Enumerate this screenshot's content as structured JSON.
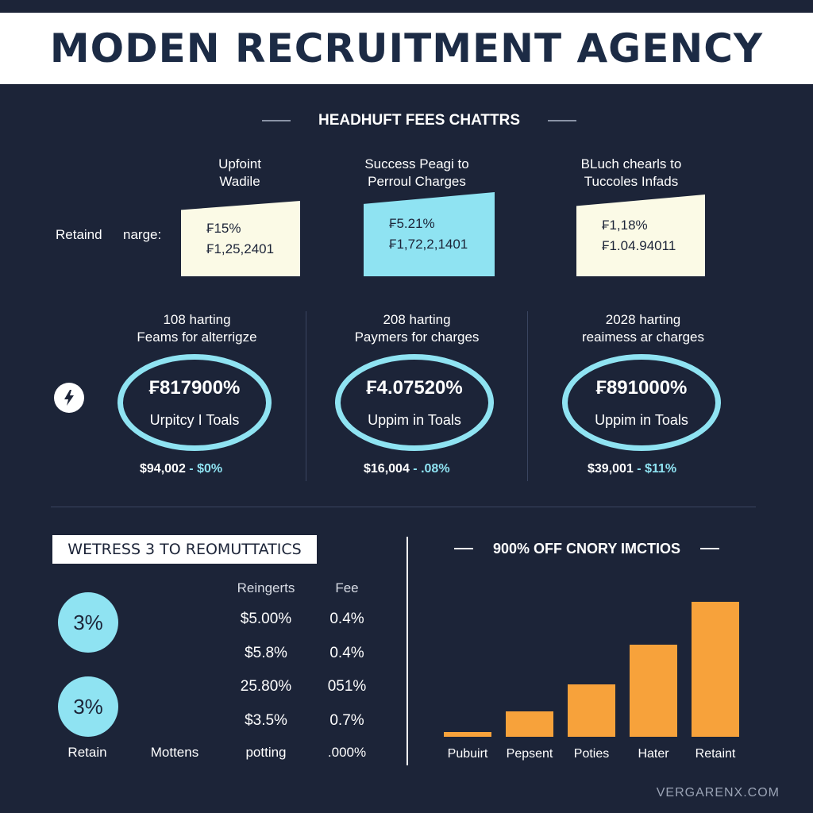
{
  "title": "MODEN RECRUITMENT AGENCY",
  "section_heading": "HEADHUFT FEES CHATTRS",
  "top_row": {
    "row_label": "Retaind",
    "row_label_2": "narge:",
    "columns": [
      {
        "caption_line1": "Upfoint",
        "caption_line2": "Wadile",
        "pct": "₣15%",
        "amount": "₣1,25,2401"
      },
      {
        "caption_line1": "Success Peagi to",
        "caption_line2": "Perroul Charges",
        "pct": "₣5.21%",
        "amount": "₣1,72,2,1401"
      },
      {
        "caption_line1": "BLuch chearls to",
        "caption_line2": "Tuccoles Infads",
        "pct": "₣1,18%",
        "amount": "₣1.04.94011"
      }
    ]
  },
  "ring_row": {
    "columns": [
      {
        "caption_line1": "108 harting",
        "caption_line2": "Feams for alterrigze",
        "value": "₣817900%",
        "label": "Urpitcy I Toals",
        "amount": "$94,002",
        "delta": "- $0%"
      },
      {
        "caption_line1": "208 harting",
        "caption_line2": "Paymers for charges",
        "value": "₣4.07520%",
        "label": "Uppim in Toals",
        "amount": "$16,004",
        "delta": "- .08%"
      },
      {
        "caption_line1": "2028 harting",
        "caption_line2": "reaimess ar charges",
        "value": "₣891000%",
        "label": "Uppim in Toals",
        "amount": "$39,001",
        "delta": "- $11%"
      }
    ]
  },
  "lower_left": {
    "box_label": "WETRESS 3 TO REOMUTTATICS",
    "circle_1": "3%",
    "circle_2": "3%",
    "table_headers": [
      "Reingerts",
      "Fee"
    ],
    "table_rows": [
      [
        "$5.00%",
        "0.4%"
      ],
      [
        "$5.8%",
        "0.4%"
      ],
      [
        "25.80%",
        "051%"
      ],
      [
        "$3.5%",
        "0.7%"
      ]
    ],
    "footer_labels": [
      "Retain",
      "Mottens",
      "potting",
      ".000%"
    ]
  },
  "colors": {
    "background": "#1c2438",
    "accent_cyan": "#8fe3f2",
    "accent_cream": "#fbfae6",
    "bar_orange": "#f7a23b"
  },
  "chart_data": {
    "type": "bar",
    "title": "900% OFF CNORY IMCTIOS",
    "categories": [
      "Pubuirt",
      "Pepsent",
      "Poties",
      "Hater",
      "Retaint"
    ],
    "values": [
      3,
      16,
      33,
      58,
      85
    ],
    "ylim": [
      0,
      100
    ],
    "grid": false,
    "xlabel": "",
    "ylabel": ""
  },
  "footer": "VERGARENX.COM"
}
